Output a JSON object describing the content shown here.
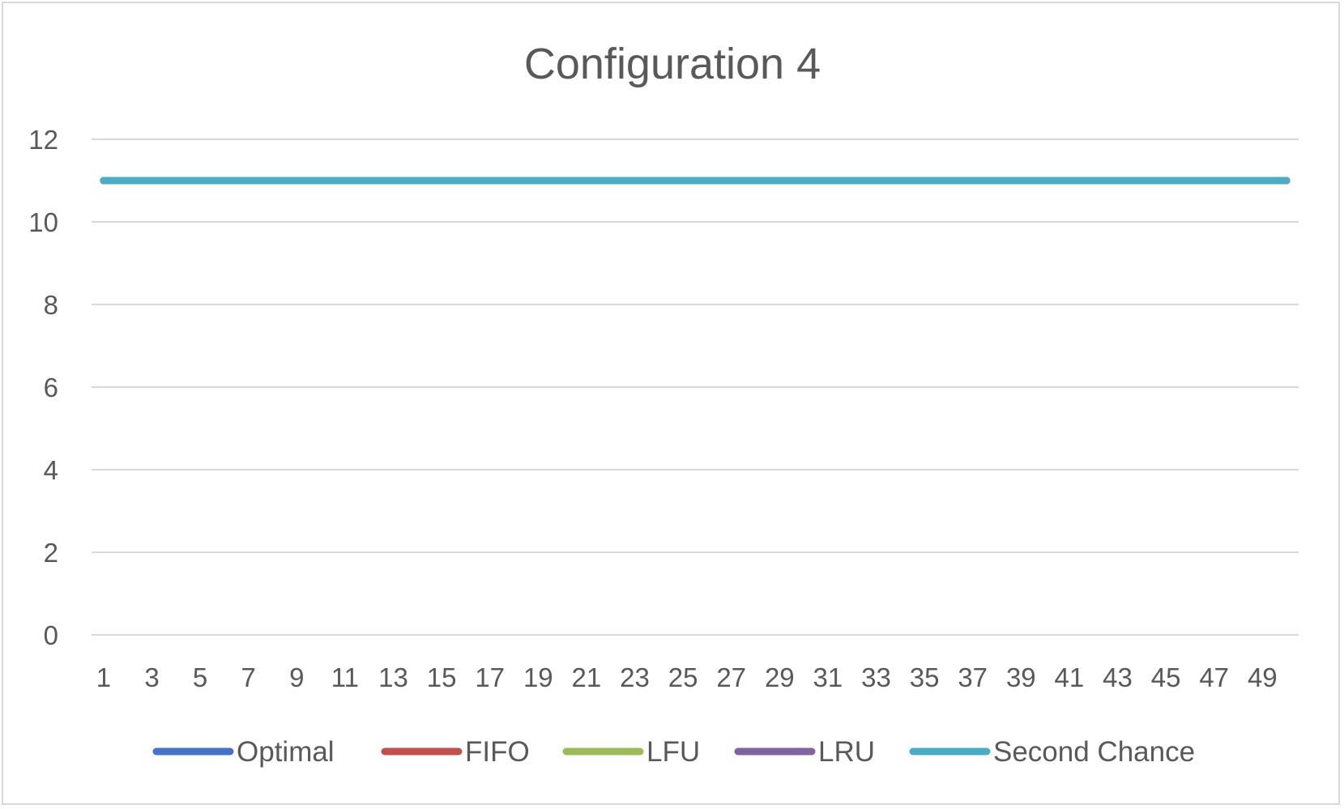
{
  "chart_data": {
    "type": "line",
    "title": "Configuration 4",
    "xlabel": "",
    "ylabel": "",
    "x": [
      1,
      2,
      3,
      4,
      5,
      6,
      7,
      8,
      9,
      10,
      11,
      12,
      13,
      14,
      15,
      16,
      17,
      18,
      19,
      20,
      21,
      22,
      23,
      24,
      25,
      26,
      27,
      28,
      29,
      30,
      31,
      32,
      33,
      34,
      35,
      36,
      37,
      38,
      39,
      40,
      41,
      42,
      43,
      44,
      45,
      46,
      47,
      48,
      49,
      50
    ],
    "x_tick_labels": [
      "1",
      "3",
      "5",
      "7",
      "9",
      "11",
      "13",
      "15",
      "17",
      "19",
      "21",
      "23",
      "25",
      "27",
      "29",
      "31",
      "33",
      "35",
      "37",
      "39",
      "41",
      "43",
      "45",
      "47",
      "49"
    ],
    "ylim": [
      0,
      12
    ],
    "y_ticks": [
      0,
      2,
      4,
      6,
      8,
      10,
      12
    ],
    "grid": true,
    "legend_position": "bottom",
    "series": [
      {
        "name": "Optimal",
        "color": "#4472c4",
        "values": [
          11,
          11,
          11,
          11,
          11,
          11,
          11,
          11,
          11,
          11,
          11,
          11,
          11,
          11,
          11,
          11,
          11,
          11,
          11,
          11,
          11,
          11,
          11,
          11,
          11,
          11,
          11,
          11,
          11,
          11,
          11,
          11,
          11,
          11,
          11,
          11,
          11,
          11,
          11,
          11,
          11,
          11,
          11,
          11,
          11,
          11,
          11,
          11,
          11,
          11
        ]
      },
      {
        "name": "FIFO",
        "color": "#c0504d",
        "values": [
          11,
          11,
          11,
          11,
          11,
          11,
          11,
          11,
          11,
          11,
          11,
          11,
          11,
          11,
          11,
          11,
          11,
          11,
          11,
          11,
          11,
          11,
          11,
          11,
          11,
          11,
          11,
          11,
          11,
          11,
          11,
          11,
          11,
          11,
          11,
          11,
          11,
          11,
          11,
          11,
          11,
          11,
          11,
          11,
          11,
          11,
          11,
          11,
          11,
          11
        ]
      },
      {
        "name": "LFU",
        "color": "#9bbb59",
        "values": [
          11,
          11,
          11,
          11,
          11,
          11,
          11,
          11,
          11,
          11,
          11,
          11,
          11,
          11,
          11,
          11,
          11,
          11,
          11,
          11,
          11,
          11,
          11,
          11,
          11,
          11,
          11,
          11,
          11,
          11,
          11,
          11,
          11,
          11,
          11,
          11,
          11,
          11,
          11,
          11,
          11,
          11,
          11,
          11,
          11,
          11,
          11,
          11,
          11,
          11
        ]
      },
      {
        "name": "LRU",
        "color": "#8064a2",
        "values": [
          11,
          11,
          11,
          11,
          11,
          11,
          11,
          11,
          11,
          11,
          11,
          11,
          11,
          11,
          11,
          11,
          11,
          11,
          11,
          11,
          11,
          11,
          11,
          11,
          11,
          11,
          11,
          11,
          11,
          11,
          11,
          11,
          11,
          11,
          11,
          11,
          11,
          11,
          11,
          11,
          11,
          11,
          11,
          11,
          11,
          11,
          11,
          11,
          11,
          11
        ]
      },
      {
        "name": "Second Chance",
        "color": "#4bacc6",
        "values": [
          11,
          11,
          11,
          11,
          11,
          11,
          11,
          11,
          11,
          11,
          11,
          11,
          11,
          11,
          11,
          11,
          11,
          11,
          11,
          11,
          11,
          11,
          11,
          11,
          11,
          11,
          11,
          11,
          11,
          11,
          11,
          11,
          11,
          11,
          11,
          11,
          11,
          11,
          11,
          11,
          11,
          11,
          11,
          11,
          11,
          11,
          11,
          11,
          11,
          11
        ]
      }
    ]
  }
}
